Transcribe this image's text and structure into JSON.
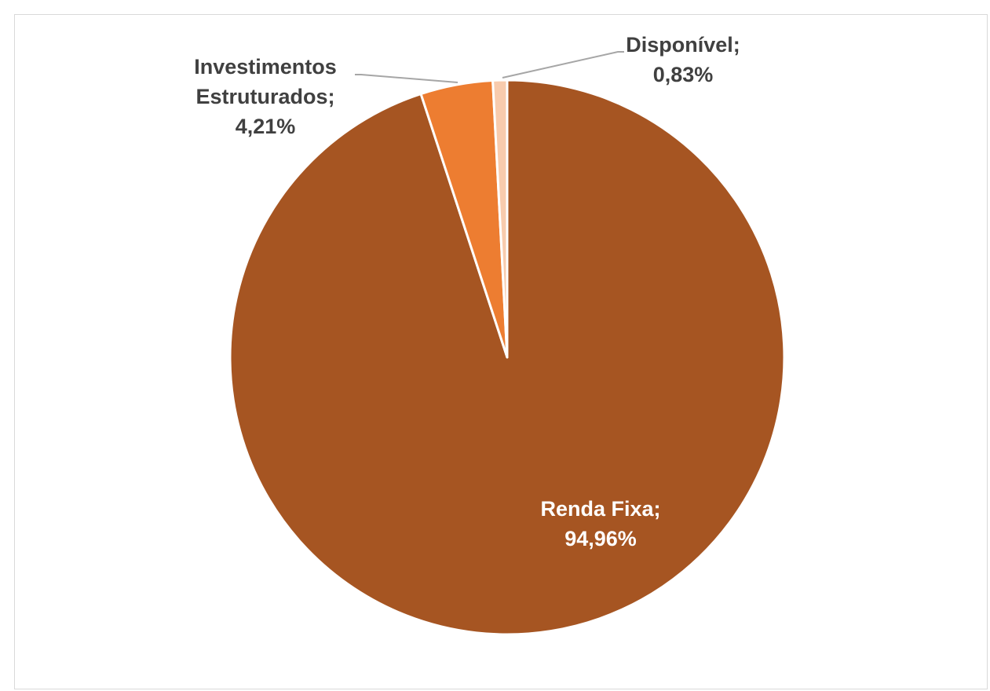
{
  "chart_data": {
    "type": "pie",
    "title": "",
    "categories": [
      "Renda Fixa",
      "Investimentos Estruturados",
      "Disponível"
    ],
    "values": [
      94.96,
      4.21,
      0.83
    ],
    "unit": "%",
    "start_angle_deg": 0,
    "direction": "clockwise",
    "legend": "none",
    "slices": [
      {
        "name": "Renda Fixa",
        "value": 94.96,
        "color": "#A65522",
        "label_lines": [
          "Renda Fixa;",
          "94,96%"
        ],
        "label_color": "#ffffff"
      },
      {
        "name": "Investimentos Estruturados",
        "value": 4.21,
        "color": "#ED7D31",
        "label_lines": [
          "Investimentos",
          "Estruturados;",
          "4,21%"
        ],
        "label_color": "#404040"
      },
      {
        "name": "Disponível",
        "value": 0.83,
        "color": "#F8CBAD",
        "label_lines": [
          "Disponível;",
          "0,83%"
        ],
        "label_color": "#404040"
      }
    ]
  }
}
